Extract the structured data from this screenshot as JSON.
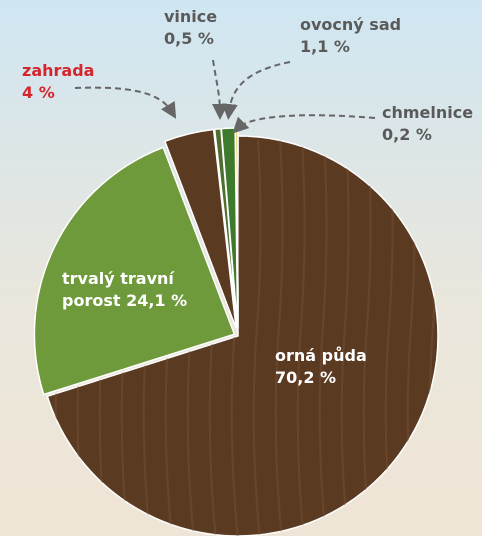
{
  "chart_data": {
    "type": "pie",
    "categories": [
      "orná půda",
      "trvalý travní porost",
      "zahrada",
      "vinice",
      "ovocný sad",
      "chmelnice"
    ],
    "values": [
      70.2,
      24.1,
      4,
      0.5,
      1.1,
      0.2
    ],
    "value_labels": [
      "70,2 %",
      "24,1 %",
      "4 %",
      "0,5 %",
      "1,1 %",
      "0,2 %"
    ],
    "colors": [
      "#5b3a22",
      "#6e9a3b",
      "#5b3a22",
      "#4d6e2c",
      "#3e7a2b",
      "#e8c84a"
    ]
  }
}
